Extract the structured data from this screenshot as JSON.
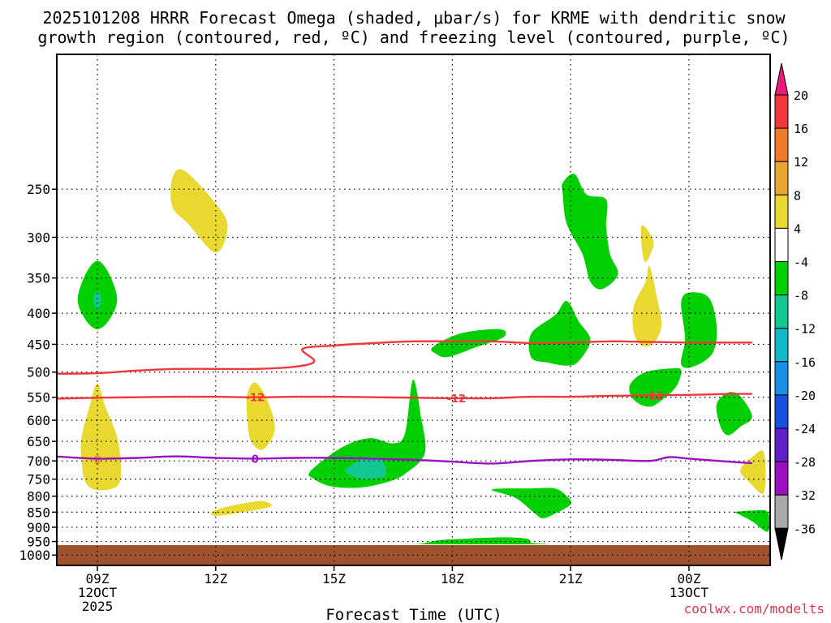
{
  "chart_data": {
    "type": "heatmap",
    "title_line1": "2025101208 HRRR Forecast Omega (shaded, μbar/s) for KRME with dendritic snow",
    "title_line2": "growth region (contoured, red, ºC) and freezing level (contoured, purple, ºC)",
    "xlabel": "Forecast Time (UTC)",
    "ylabel": "",
    "credit": "coolwx.com/modelts",
    "x_range_hours": [
      7.9,
      25.6
    ],
    "y_range_hpa": [
      1040,
      150
    ],
    "y_scale": "log",
    "grid": "dotted",
    "x_ticks": [
      {
        "hour": 9,
        "lines": [
          "09Z",
          "12OCT",
          "2025"
        ]
      },
      {
        "hour": 12,
        "lines": [
          "12Z"
        ]
      },
      {
        "hour": 15,
        "lines": [
          "15Z"
        ]
      },
      {
        "hour": 18,
        "lines": [
          "18Z"
        ]
      },
      {
        "hour": 21,
        "lines": [
          "21Z"
        ]
      },
      {
        "hour": 24,
        "lines": [
          "00Z",
          "13OCT"
        ]
      }
    ],
    "y_ticks": [
      250,
      300,
      350,
      400,
      450,
      500,
      550,
      600,
      650,
      700,
      750,
      800,
      850,
      900,
      950,
      1000
    ],
    "surface_pressure_hpa": 963,
    "surface_color": "#a0522d",
    "colorbar": {
      "levels": [
        "20",
        "16",
        "12",
        "8",
        "4",
        "-4",
        "-8",
        "-12",
        "-16",
        "-20",
        "-24",
        "-28",
        "-32",
        "-36"
      ],
      "colors": [
        "#ec1a7a",
        "#f0383c",
        "#f07b2a",
        "#e8a630",
        "#e8d830",
        "#ffffff",
        "#00d000",
        "#10c890",
        "#10b8c8",
        "#1890e8",
        "#1850e0",
        "#6020c8",
        "#9a10c0",
        "#a8a8a8",
        "#000000"
      ]
    },
    "series": [
      {
        "name": "dendritic growth -12",
        "color": "#f0383c",
        "label": "-12",
        "points": [
          [
            7.9,
            553
          ],
          [
            9,
            551
          ],
          [
            10,
            550
          ],
          [
            11,
            549
          ],
          [
            12,
            549
          ],
          [
            13,
            550
          ],
          [
            14,
            549
          ],
          [
            15,
            549
          ],
          [
            16,
            550
          ],
          [
            17,
            551
          ],
          [
            18,
            552
          ],
          [
            19,
            552
          ],
          [
            20,
            549
          ],
          [
            21,
            549
          ],
          [
            22,
            547
          ],
          [
            23,
            546
          ],
          [
            24,
            545
          ],
          [
            25,
            543
          ],
          [
            25.6,
            543
          ]
        ],
        "labels_at": [
          13,
          18.1,
          23.1
        ]
      },
      {
        "name": "dendritic growth -18",
        "color": "#f0383c",
        "label": "",
        "points": [
          [
            7.9,
            503
          ],
          [
            9,
            502
          ],
          [
            10,
            497
          ],
          [
            11,
            494
          ],
          [
            12,
            494
          ],
          [
            13,
            494
          ],
          [
            14,
            490
          ],
          [
            14.5,
            480
          ],
          [
            14.2,
            458
          ],
          [
            15,
            452
          ],
          [
            16,
            448
          ],
          [
            17,
            445
          ],
          [
            18,
            445
          ],
          [
            19,
            445
          ],
          [
            20,
            448
          ],
          [
            21,
            447
          ],
          [
            22,
            445
          ],
          [
            23,
            446
          ],
          [
            24,
            447
          ],
          [
            25,
            447
          ],
          [
            25.6,
            447
          ]
        ],
        "labels_at": []
      },
      {
        "name": "freezing level 0",
        "color": "#9a10c0",
        "label": "0",
        "points": [
          [
            7.9,
            688
          ],
          [
            9,
            694
          ],
          [
            10,
            692
          ],
          [
            11,
            688
          ],
          [
            12,
            692
          ],
          [
            13,
            694
          ],
          [
            14,
            692
          ],
          [
            15,
            692
          ],
          [
            16,
            694
          ],
          [
            17,
            697
          ],
          [
            18,
            702
          ],
          [
            19,
            707
          ],
          [
            20,
            700
          ],
          [
            21,
            696
          ],
          [
            22,
            697
          ],
          [
            23,
            700
          ],
          [
            23.5,
            690
          ],
          [
            24,
            694
          ],
          [
            25,
            702
          ],
          [
            25.6,
            706
          ]
        ],
        "labels_at": [
          13
        ]
      }
    ],
    "shaded_regions": [
      {
        "value": -6,
        "points": [
          [
            8.5,
            380
          ],
          [
            8.7,
            345
          ],
          [
            9.0,
            328
          ],
          [
            9.3,
            345
          ],
          [
            9.5,
            380
          ],
          [
            9.3,
            410
          ],
          [
            9.0,
            425
          ],
          [
            8.7,
            410
          ]
        ]
      },
      {
        "value": -10,
        "points": [
          [
            8.95,
            370
          ],
          [
            9.05,
            370
          ],
          [
            9.1,
            383
          ],
          [
            9.0,
            395
          ],
          [
            8.9,
            383
          ]
        ]
      },
      {
        "value": 6,
        "points": [
          [
            10.9,
            240
          ],
          [
            11.2,
            233
          ],
          [
            12.0,
            264
          ],
          [
            12.3,
            288
          ],
          [
            12.0,
            318
          ],
          [
            11.3,
            285
          ],
          [
            10.9,
            267
          ]
        ]
      },
      {
        "value": 6,
        "points": [
          [
            8.6,
            640
          ],
          [
            8.8,
            570
          ],
          [
            9.0,
            522
          ],
          [
            9.2,
            570
          ],
          [
            9.5,
            640
          ],
          [
            9.6,
            720
          ],
          [
            9.5,
            770
          ],
          [
            9.0,
            782
          ],
          [
            8.7,
            760
          ],
          [
            8.6,
            700
          ]
        ]
      },
      {
        "value": 10,
        "points": [
          [
            8.95,
            685
          ],
          [
            9.05,
            685
          ],
          [
            9.08,
            700
          ],
          [
            9.0,
            712
          ],
          [
            8.92,
            700
          ]
        ]
      },
      {
        "value": 6,
        "points": [
          [
            12.8,
            545
          ],
          [
            13.0,
            520
          ],
          [
            13.3,
            555
          ],
          [
            13.5,
            620
          ],
          [
            13.2,
            670
          ],
          [
            12.9,
            650
          ],
          [
            12.8,
            600
          ]
        ]
      },
      {
        "value": 6,
        "points": [
          [
            11.9,
            850
          ],
          [
            12.2,
            835
          ],
          [
            12.8,
            820
          ],
          [
            13.2,
            815
          ],
          [
            13.4,
            832
          ],
          [
            12.6,
            852
          ],
          [
            12.0,
            862
          ]
        ]
      },
      {
        "value": -6,
        "points": [
          [
            14.4,
            728
          ],
          [
            15.2,
            665
          ],
          [
            15.9,
            642
          ],
          [
            16.5,
            655
          ],
          [
            16.8,
            630
          ],
          [
            17.0,
            515
          ],
          [
            17.2,
            590
          ],
          [
            17.3,
            680
          ],
          [
            16.8,
            735
          ],
          [
            16.3,
            760
          ],
          [
            15.6,
            775
          ],
          [
            14.9,
            770
          ],
          [
            14.5,
            750
          ]
        ]
      },
      {
        "value": -10,
        "points": [
          [
            15.3,
            722
          ],
          [
            15.8,
            692
          ],
          [
            16.2,
            695
          ],
          [
            16.3,
            740
          ],
          [
            15.8,
            750
          ],
          [
            15.4,
            738
          ]
        ]
      },
      {
        "value": -6,
        "points": [
          [
            17.5,
            455
          ],
          [
            18.2,
            432
          ],
          [
            19.2,
            425
          ],
          [
            19.3,
            438
          ],
          [
            18.6,
            455
          ],
          [
            17.9,
            472
          ],
          [
            17.6,
            467
          ]
        ]
      },
      {
        "value": -6,
        "points": [
          [
            17.3,
            956
          ],
          [
            17.7,
            945
          ],
          [
            18.3,
            940
          ],
          [
            19.3,
            935
          ],
          [
            19.9,
            940
          ],
          [
            20.0,
            955
          ],
          [
            20.3,
            960
          ],
          [
            17.3,
            960
          ]
        ]
      },
      {
        "value": -6,
        "points": [
          [
            20.0,
            777
          ],
          [
            20.6,
            777
          ],
          [
            20.9,
            800
          ],
          [
            21.0,
            825
          ],
          [
            20.6,
            855
          ],
          [
            20.3,
            870
          ],
          [
            20.1,
            855
          ],
          [
            19.6,
            805
          ],
          [
            19.0,
            780
          ]
        ]
      },
      {
        "value": -6,
        "points": [
          [
            20.0,
            432
          ],
          [
            20.6,
            403
          ],
          [
            20.9,
            382
          ],
          [
            21.2,
            412
          ],
          [
            21.5,
            443
          ],
          [
            21.2,
            480
          ],
          [
            20.9,
            488
          ],
          [
            20.4,
            482
          ],
          [
            20.0,
            473
          ]
        ]
      },
      {
        "value": -6,
        "points": [
          [
            20.8,
            244
          ],
          [
            21.1,
            236
          ],
          [
            21.4,
            255
          ],
          [
            21.9,
            260
          ],
          [
            21.9,
            288
          ],
          [
            22.0,
            320
          ],
          [
            22.2,
            345
          ],
          [
            21.8,
            365
          ],
          [
            21.5,
            355
          ],
          [
            21.3,
            320
          ],
          [
            20.9,
            285
          ],
          [
            20.8,
            255
          ]
        ]
      },
      {
        "value": 6,
        "points": [
          [
            22.8,
            287
          ],
          [
            23.0,
            295
          ],
          [
            23.1,
            308
          ],
          [
            22.9,
            330
          ],
          [
            22.8,
            310
          ]
        ]
      },
      {
        "value": 6,
        "points": [
          [
            22.6,
            390
          ],
          [
            22.9,
            355
          ],
          [
            23.0,
            335
          ],
          [
            23.2,
            380
          ],
          [
            23.3,
            420
          ],
          [
            23.1,
            448
          ],
          [
            22.8,
            452
          ],
          [
            22.6,
            430
          ]
        ]
      },
      {
        "value": -6,
        "points": [
          [
            22.5,
            525
          ],
          [
            22.9,
            500
          ],
          [
            23.6,
            493
          ],
          [
            23.8,
            497
          ],
          [
            23.7,
            525
          ],
          [
            23.4,
            550
          ],
          [
            23.0,
            570
          ],
          [
            22.6,
            555
          ]
        ]
      },
      {
        "value": -6,
        "points": [
          [
            23.8,
            385
          ],
          [
            24.0,
            370
          ],
          [
            24.5,
            377
          ],
          [
            24.7,
            420
          ],
          [
            24.6,
            465
          ],
          [
            24.1,
            490
          ],
          [
            23.8,
            485
          ],
          [
            23.9,
            440
          ]
        ]
      },
      {
        "value": -6,
        "points": [
          [
            24.7,
            565
          ],
          [
            25.0,
            540
          ],
          [
            25.3,
            548
          ],
          [
            25.6,
            592
          ],
          [
            25.3,
            615
          ],
          [
            25.0,
            635
          ],
          [
            24.8,
            615
          ]
        ]
      },
      {
        "value": 6,
        "points": [
          [
            25.6,
            690
          ],
          [
            25.9,
            678
          ],
          [
            25.9,
            790
          ],
          [
            25.5,
            755
          ],
          [
            25.3,
            725
          ]
        ]
      },
      {
        "value": -6,
        "points": [
          [
            25.1,
            850
          ],
          [
            25.6,
            845
          ],
          [
            26.0,
            850
          ],
          [
            26.0,
            915
          ],
          [
            25.6,
            880
          ],
          [
            25.2,
            853
          ]
        ]
      }
    ]
  }
}
